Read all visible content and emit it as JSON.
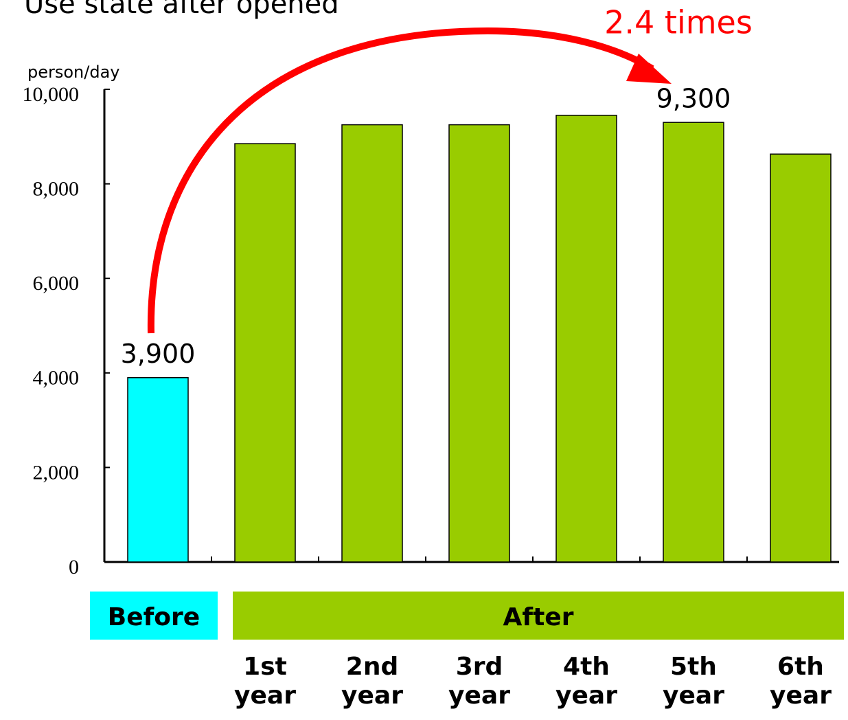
{
  "chart_data": {
    "type": "bar",
    "title": "Use state after opened",
    "y_label": "person/day",
    "annotation": "2.4 times",
    "categories": [
      null,
      "1st\nyear",
      "2nd\nyear",
      "3rd\nyear",
      "4th\nyear",
      "5th\nyear",
      "6th\nyear"
    ],
    "values": [
      3900,
      8850,
      9250,
      9250,
      9450,
      9300,
      8630
    ],
    "value_labels": [
      "3,900",
      null,
      null,
      null,
      null,
      "9,300",
      null
    ],
    "colors": [
      "#00ffff",
      "#99cc00",
      "#99cc00",
      "#99cc00",
      "#99cc00",
      "#99cc00",
      "#99cc00"
    ],
    "groups": [
      {
        "label": "Before",
        "color": "#00ffff"
      },
      {
        "label": "After",
        "color": "#99cc00"
      }
    ],
    "ylim": [
      0,
      10000
    ],
    "yticks": [
      0,
      {
        "value": 2000,
        "label": "2,000"
      },
      {
        "value": 4000,
        "label": "4,000"
      },
      {
        "value": 6000,
        "label": "6,000"
      },
      {
        "value": 8000,
        "label": "8,000"
      },
      {
        "value": 10000,
        "label": "10,000"
      }
    ],
    "grid": false
  }
}
